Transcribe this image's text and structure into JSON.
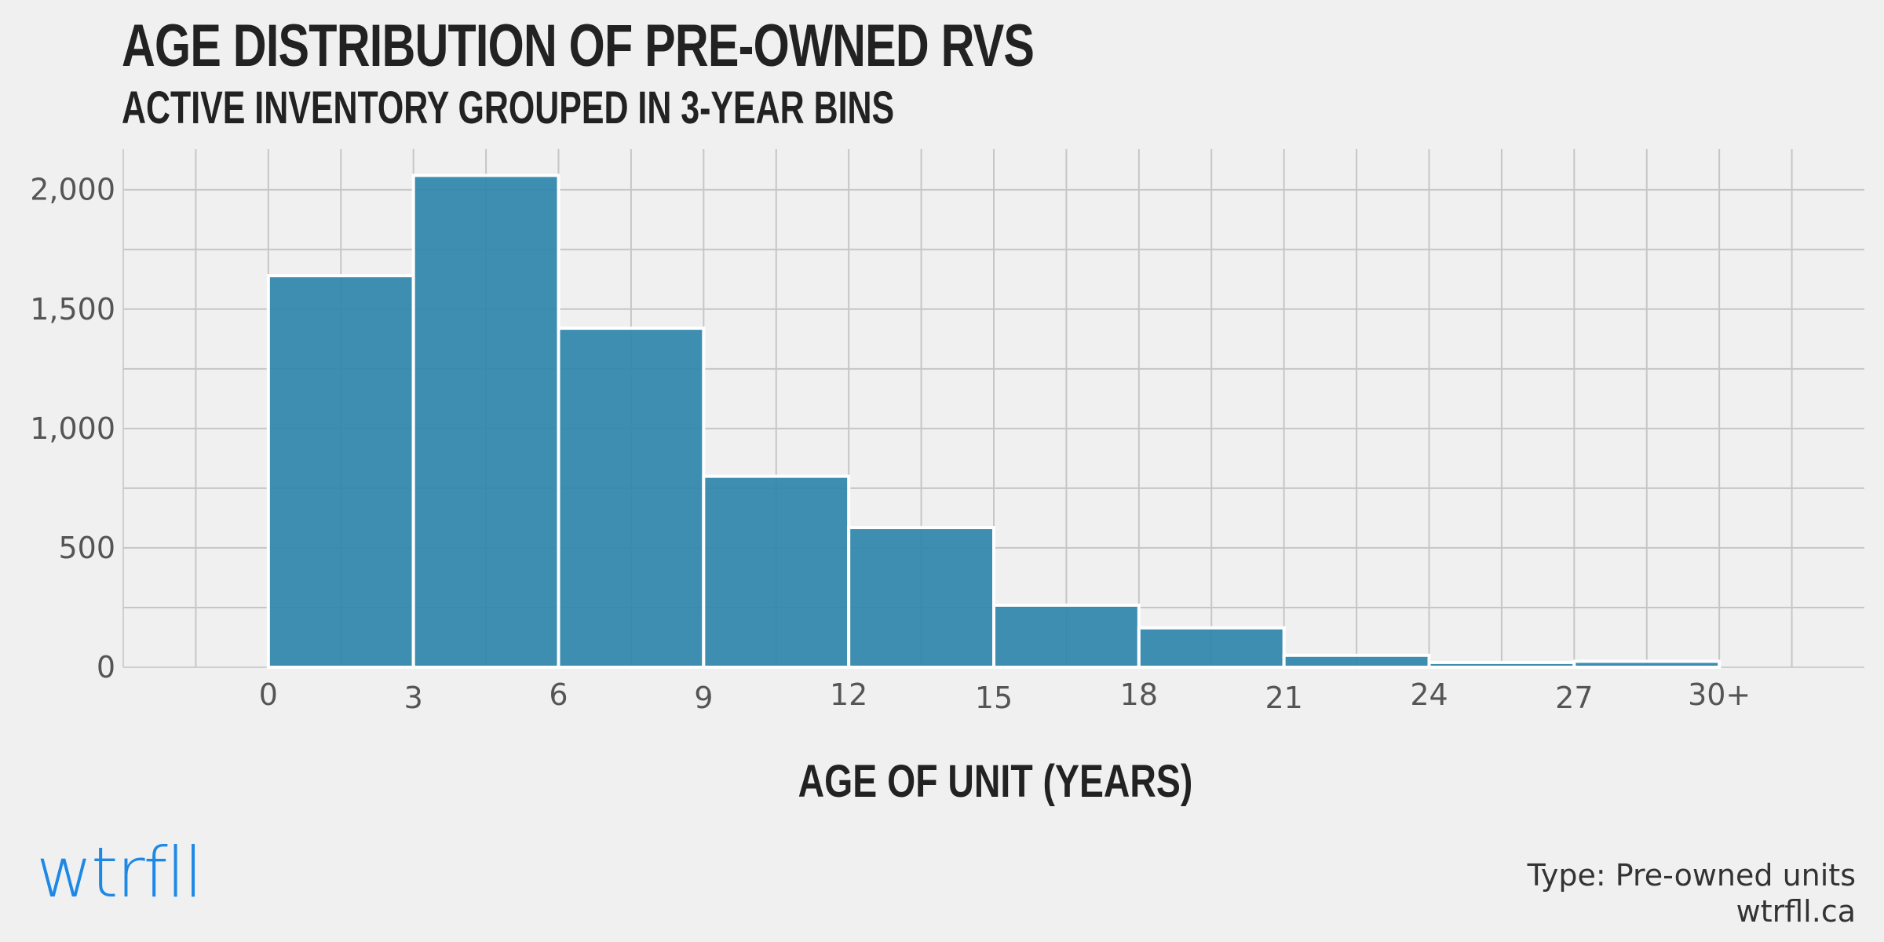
{
  "chart_data": {
    "type": "bar",
    "title": "AGE DISTRIBUTION OF PRE-OWNED RVS",
    "subtitle": "ACTIVE INVENTORY GROUPED IN 3-YEAR BINS",
    "xlabel": "AGE OF UNIT (YEARS)",
    "ylabel": "",
    "x_tick_labels": [
      "0",
      "3",
      "6",
      "9",
      "12",
      "15",
      "18",
      "21",
      "24",
      "27",
      "30+"
    ],
    "y_tick_labels": [
      "0",
      "500",
      "1,000",
      "1,500",
      "2,000"
    ],
    "bins": [
      {
        "start": 0,
        "end": 3,
        "value": 1640
      },
      {
        "start": 3,
        "end": 6,
        "value": 2060
      },
      {
        "start": 6,
        "end": 9,
        "value": 1420
      },
      {
        "start": 9,
        "end": 12,
        "value": 800
      },
      {
        "start": 12,
        "end": 15,
        "value": 585
      },
      {
        "start": 15,
        "end": 18,
        "value": 260
      },
      {
        "start": 18,
        "end": 21,
        "value": 165
      },
      {
        "start": 21,
        "end": 24,
        "value": 50
      },
      {
        "start": 24,
        "end": 27,
        "value": 20
      },
      {
        "start": 27,
        "end": 30,
        "value": 25
      }
    ],
    "xlim": [
      -3,
      33
    ],
    "ylim": [
      0,
      2170
    ],
    "grid": true,
    "bar_color": "#2e86ab"
  },
  "branding": {
    "logo_text": "wtrfll",
    "footer_line1": "Type: Pre-owned units",
    "footer_line2": "wtrfll.ca",
    "logo_color": "#1e88e5"
  }
}
